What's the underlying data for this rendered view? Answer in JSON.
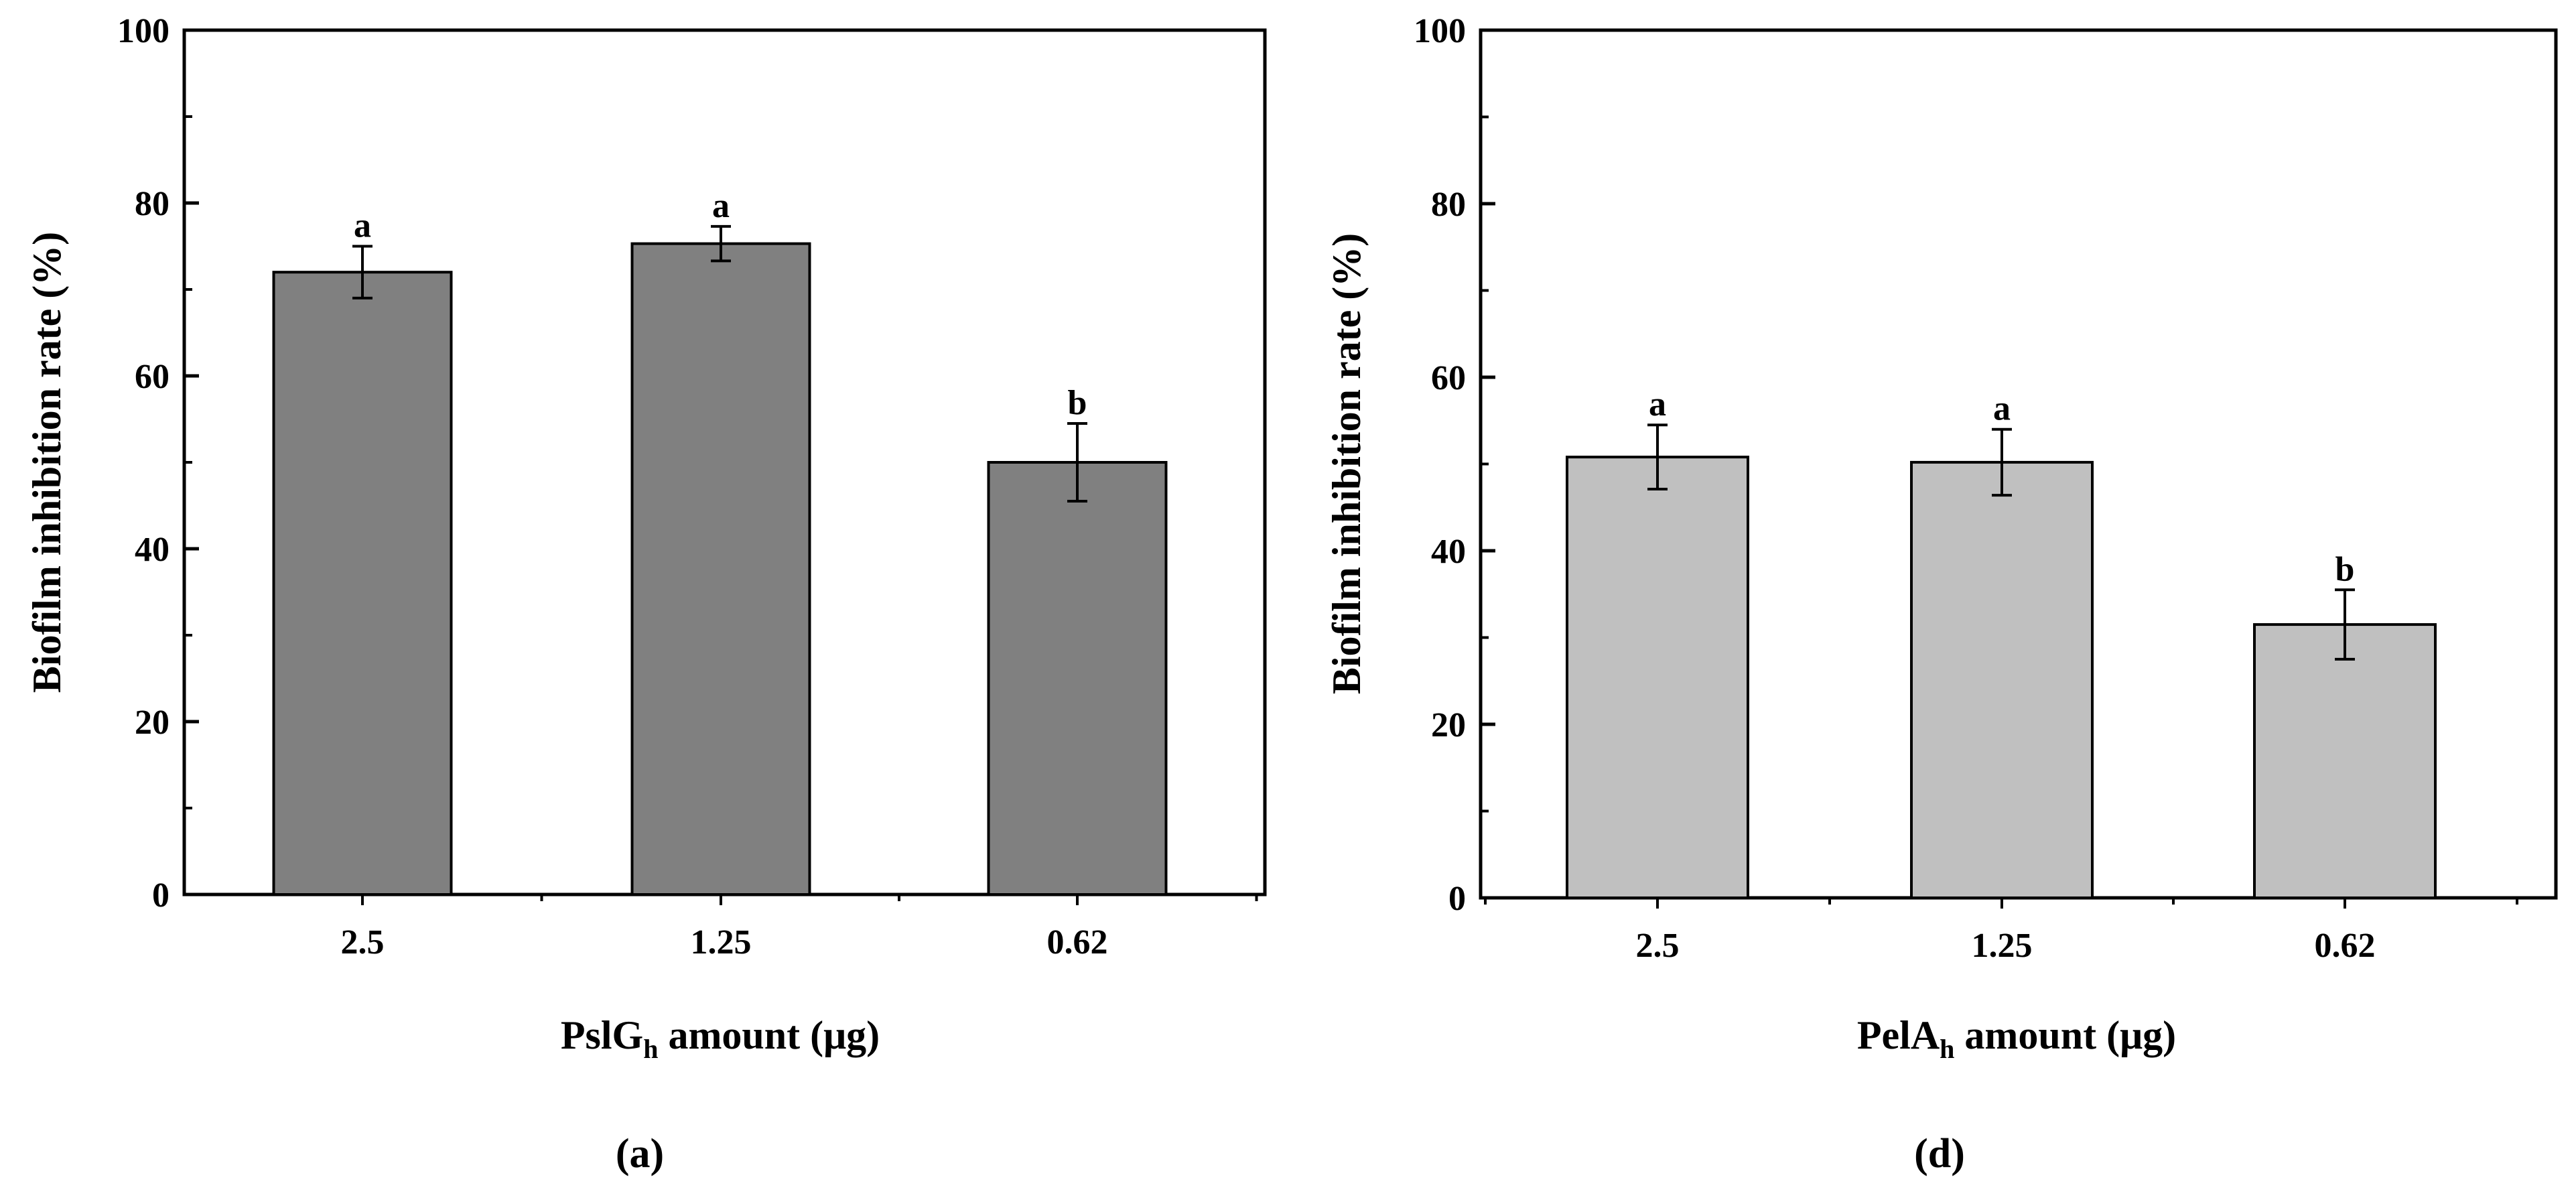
{
  "chart_data": [
    {
      "type": "bar",
      "panel_label": "(a)",
      "categories": [
        "2.5",
        "1.25",
        "0.62"
      ],
      "values": [
        72,
        75.3,
        50
      ],
      "errors": [
        3,
        2,
        4.5
      ],
      "significance": [
        "a",
        "a",
        "b"
      ],
      "ylabel": "Biofilm inhibition rate (%)",
      "xlabel_main": "PslG",
      "xlabel_sub": "h",
      "xlabel_rest": " amount (μg)",
      "ylim": [
        0,
        100
      ],
      "yticks": [
        "0",
        "20",
        "40",
        "60",
        "80",
        "100"
      ],
      "bar_color": "#808080"
    },
    {
      "type": "bar",
      "panel_label": "(d)",
      "categories": [
        "2.5",
        "1.25",
        "0.62"
      ],
      "values": [
        50.8,
        50.2,
        31.5
      ],
      "errors": [
        3.7,
        3.8,
        4
      ],
      "significance": [
        "a",
        "a",
        "b"
      ],
      "ylabel": "Biofilm inhibition rate (%)",
      "xlabel_main": "PelA",
      "xlabel_sub": "h",
      "xlabel_rest": " amount (μg)",
      "ylim": [
        0,
        100
      ],
      "yticks": [
        "0",
        "20",
        "40",
        "60",
        "80",
        "100"
      ],
      "bar_color": "#c0c0c0"
    }
  ]
}
